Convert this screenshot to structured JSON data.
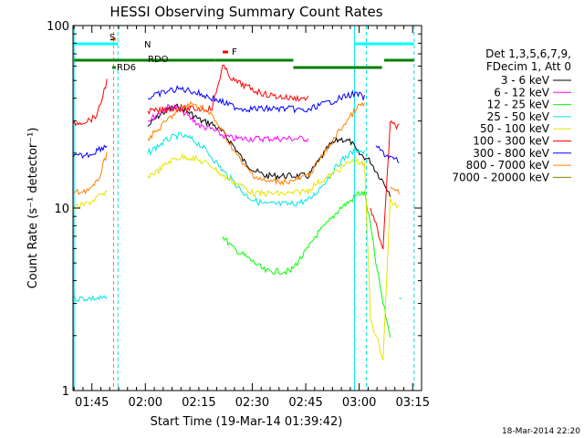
{
  "chart_data": {
    "type": "line",
    "title": "HESSI Observing Summary Count Rates",
    "xlabel": "Start Time (19-Mar-14 01:39:42)",
    "ylabel": "Count Rate (s⁻¹ detector⁻¹)",
    "yscale": "log",
    "ylim": [
      1,
      100
    ],
    "xlim": [
      "01:39:42",
      "03:17:30"
    ],
    "x_ticks": [
      "01:45",
      "02:00",
      "02:15",
      "02:30",
      "02:45",
      "03:00",
      "03:15"
    ],
    "y_ticks": [
      "1",
      "10",
      "100"
    ],
    "x_ticks_minutes": [
      5.3,
      20.3,
      35.3,
      50.3,
      65.3,
      80.3,
      95.3
    ],
    "x_range_minutes": [
      0,
      97.8
    ],
    "grid": false,
    "legend_position": "right",
    "legend_header": [
      "Det 1,3,5,6,7,9,",
      "FDecim 1, Att 0"
    ],
    "timestamp": "18-Mar-2014 22:20",
    "flags": [
      {
        "label": "S",
        "color": "#ff8000"
      },
      {
        "label": "N",
        "color": "#00ffff"
      },
      {
        "label": "RDO",
        "color": "#008000"
      },
      {
        "label": "RD6",
        "color": "#008000"
      },
      {
        "label": "F",
        "color": "#ff0000"
      }
    ],
    "series": [
      {
        "name": "3 - 6 keV",
        "color": "#000000",
        "x": [
          0,
          3.5,
          5.6,
          7,
          9.5,
          11,
          13,
          15,
          17,
          19,
          21,
          24,
          27,
          30,
          33,
          36,
          39,
          42,
          45,
          48,
          51,
          54,
          57,
          61,
          66,
          68,
          72,
          75,
          78,
          80,
          81.8,
          83.5,
          85,
          87,
          89,
          91.5
        ],
        "y": [
          null,
          null,
          null,
          null,
          null,
          null,
          null,
          null,
          null,
          null,
          28,
          32,
          35,
          36,
          33,
          30,
          29,
          26,
          22,
          18,
          16,
          15,
          15,
          15,
          15,
          17,
          22,
          24,
          23,
          20,
          19,
          18,
          16,
          14,
          12,
          null
        ]
      },
      {
        "name": "6 - 12 keV",
        "color": "#ff00ff",
        "x": [
          0,
          3.5,
          5.6,
          7,
          9.5,
          11,
          13,
          15,
          17,
          19,
          21,
          24,
          27,
          30,
          33,
          36,
          39,
          42,
          45,
          48,
          51,
          54,
          57,
          61,
          66,
          68,
          72,
          75,
          78,
          80,
          81.8,
          83.5,
          85,
          87,
          89,
          91.5
        ],
        "y": [
          null,
          null,
          null,
          null,
          null,
          null,
          null,
          null,
          null,
          null,
          30,
          33,
          36,
          35,
          31,
          28,
          27,
          25,
          24,
          24,
          24,
          24,
          24,
          24,
          24,
          null,
          null,
          null,
          null,
          null,
          null,
          null,
          null,
          null,
          null,
          null
        ]
      },
      {
        "name": "12 - 25 keV",
        "color": "#00ff00",
        "x": [
          0,
          3.5,
          5.6,
          7,
          9.5,
          11,
          13,
          15,
          17,
          19,
          21,
          24,
          27,
          30,
          33,
          36,
          39,
          42,
          45,
          48,
          51,
          54,
          57,
          61,
          66,
          68,
          72,
          75,
          78,
          80,
          81.8,
          83.5,
          85,
          87,
          89,
          91.5
        ],
        "y": [
          null,
          null,
          null,
          null,
          null,
          null,
          null,
          null,
          null,
          null,
          null,
          null,
          null,
          null,
          null,
          null,
          null,
          7,
          6,
          5.5,
          5,
          4.5,
          4.5,
          4.5,
          6,
          7,
          8.5,
          10,
          11,
          12,
          12,
          8,
          5,
          3,
          2,
          null
        ]
      },
      {
        "name": "25 - 50 keV",
        "color": "#00e5e5",
        "x": [
          0,
          3.5,
          5.6,
          7,
          9.5,
          11,
          13,
          15,
          17,
          19,
          21,
          24,
          27,
          30,
          33,
          36,
          39,
          42,
          45,
          48,
          51,
          54,
          57,
          61,
          66,
          68,
          72,
          75,
          78,
          80,
          81.8,
          83.5,
          85,
          87,
          89,
          91.5
        ],
        "y": [
          3.2,
          3.2,
          3.2,
          3.2,
          3.2,
          null,
          null,
          null,
          null,
          null,
          20,
          22,
          24,
          25,
          24,
          22,
          19,
          16,
          14,
          12,
          11,
          10.5,
          10.5,
          10.5,
          11,
          12,
          15,
          18,
          20,
          21,
          20,
          null,
          null,
          null,
          null,
          3.2
        ]
      },
      {
        "name": "50 - 100 keV",
        "color": "#e5e500",
        "x": [
          0,
          3.5,
          5.6,
          7,
          9.5,
          11,
          13,
          15,
          17,
          19,
          21,
          24,
          27,
          30,
          33,
          36,
          39,
          42,
          45,
          48,
          51,
          54,
          57,
          61,
          66,
          68,
          72,
          75,
          78,
          80,
          81.8,
          83.5,
          85,
          87,
          89,
          91.5
        ],
        "y": [
          10,
          10.5,
          11,
          11.5,
          12,
          null,
          null,
          null,
          null,
          null,
          15,
          16,
          18,
          19,
          19,
          18,
          17,
          15,
          14,
          13,
          12,
          12,
          12,
          12,
          12.5,
          13.5,
          15,
          16.5,
          18,
          18,
          17,
          2.5,
          2,
          1.5,
          11,
          10
        ]
      },
      {
        "name": "100 - 300 keV",
        "color": "#ff0000",
        "x": [
          0,
          3.5,
          5.6,
          7,
          9.5,
          11,
          13,
          15,
          17,
          19,
          21,
          24,
          27,
          30,
          33,
          36,
          39,
          42,
          45,
          48,
          51,
          54,
          57,
          61,
          66,
          68,
          72,
          75,
          78,
          80,
          81.8,
          83.5,
          85,
          87,
          89,
          91.5
        ],
        "y": [
          29,
          30,
          31,
          33,
          50,
          null,
          null,
          null,
          null,
          null,
          34,
          34,
          35,
          35,
          35,
          35,
          35,
          60,
          50,
          47,
          44,
          42,
          41,
          40,
          40,
          null,
          null,
          null,
          null,
          null,
          null,
          10,
          8,
          6,
          29,
          28
        ]
      },
      {
        "name": "300 - 800 keV",
        "color": "#0000ff",
        "x": [
          0,
          3.5,
          5.6,
          7,
          9.5,
          11,
          13,
          15,
          17,
          19,
          21,
          24,
          27,
          30,
          33,
          36,
          39,
          42,
          45,
          48,
          51,
          54,
          57,
          61,
          66,
          68,
          72,
          75,
          78,
          80,
          81.8,
          83.5,
          85,
          87,
          89,
          91.5
        ],
        "y": [
          19,
          19.5,
          20,
          21,
          22,
          null,
          null,
          null,
          null,
          null,
          40,
          42,
          44,
          45,
          44,
          42,
          40,
          38,
          36,
          35,
          35,
          35,
          35,
          35,
          34,
          36,
          38,
          40,
          42,
          42,
          40,
          null,
          22,
          20,
          19,
          18
        ]
      },
      {
        "name": "800 - 7000 keV",
        "color": "#ff8000",
        "x": [
          0,
          3.5,
          5.6,
          7,
          9.5,
          11,
          13,
          15,
          17,
          19,
          21,
          24,
          27,
          30,
          33,
          36,
          39,
          42,
          45,
          48,
          51,
          54,
          57,
          61,
          66,
          68,
          72,
          75,
          78,
          80,
          81.8,
          83.5,
          85,
          87,
          89,
          91.5
        ],
        "y": [
          12,
          12.5,
          13,
          14,
          20,
          null,
          null,
          null,
          null,
          null,
          24,
          27,
          31,
          35,
          37,
          36,
          32,
          26,
          21,
          17,
          15,
          14,
          14,
          14,
          15,
          17,
          22,
          27,
          32,
          36,
          37,
          null,
          null,
          null,
          13,
          12
        ]
      },
      {
        "name": "7000 - 20000 keV",
        "color": "#808000",
        "x": [
          0,
          3.5,
          5.6,
          7,
          9.5,
          11,
          13,
          15,
          17,
          19,
          21,
          24,
          27,
          30,
          33,
          36,
          39,
          42,
          45,
          48,
          51,
          54,
          57,
          61,
          66,
          68,
          72,
          75,
          78,
          80,
          81.8,
          83.5,
          85,
          87,
          89,
          91.5
        ],
        "y": [
          null,
          null,
          null,
          null,
          null,
          null,
          null,
          null,
          null,
          null,
          null,
          null,
          null,
          null,
          null,
          null,
          null,
          null,
          null,
          null,
          null,
          null,
          null,
          null,
          null,
          null,
          null,
          null,
          null,
          null,
          null,
          null,
          null,
          null,
          null,
          null
        ]
      }
    ]
  }
}
